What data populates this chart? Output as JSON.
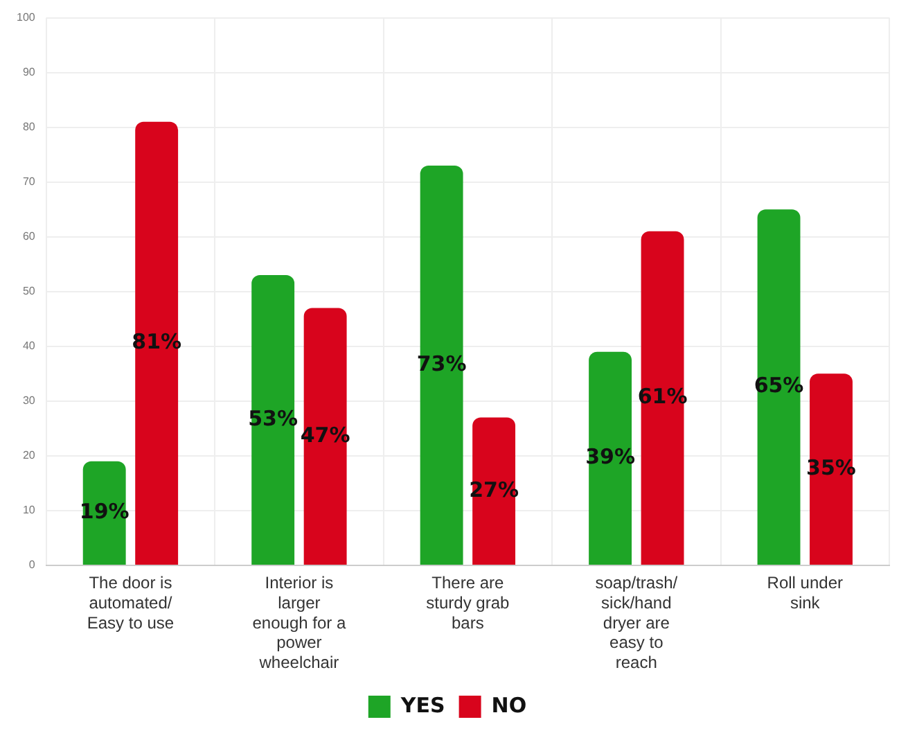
{
  "chart_data": {
    "type": "bar",
    "categories": [
      "The door is automated/ Easy to use",
      "Interior is larger enough for a power wheelchair",
      "There are sturdy grab bars",
      "soap/trash/ sick/hand dryer are easy to reach",
      "Roll under sink"
    ],
    "series": [
      {
        "name": "YES",
        "color": "#1ea526",
        "values": [
          19,
          53,
          73,
          39,
          65
        ],
        "value_labels": [
          "19%",
          "53%",
          "73%",
          "39%",
          "65%"
        ]
      },
      {
        "name": "NO",
        "color": "#d8041c",
        "values": [
          81,
          47,
          27,
          61,
          35
        ],
        "value_labels": [
          "81%",
          "47%",
          "27%",
          "61%",
          "35%"
        ]
      }
    ],
    "ylim": [
      0,
      100
    ],
    "yticks": [
      0,
      10,
      20,
      30,
      40,
      50,
      60,
      70,
      80,
      90,
      100
    ],
    "grid": true,
    "legend": "bottom"
  }
}
